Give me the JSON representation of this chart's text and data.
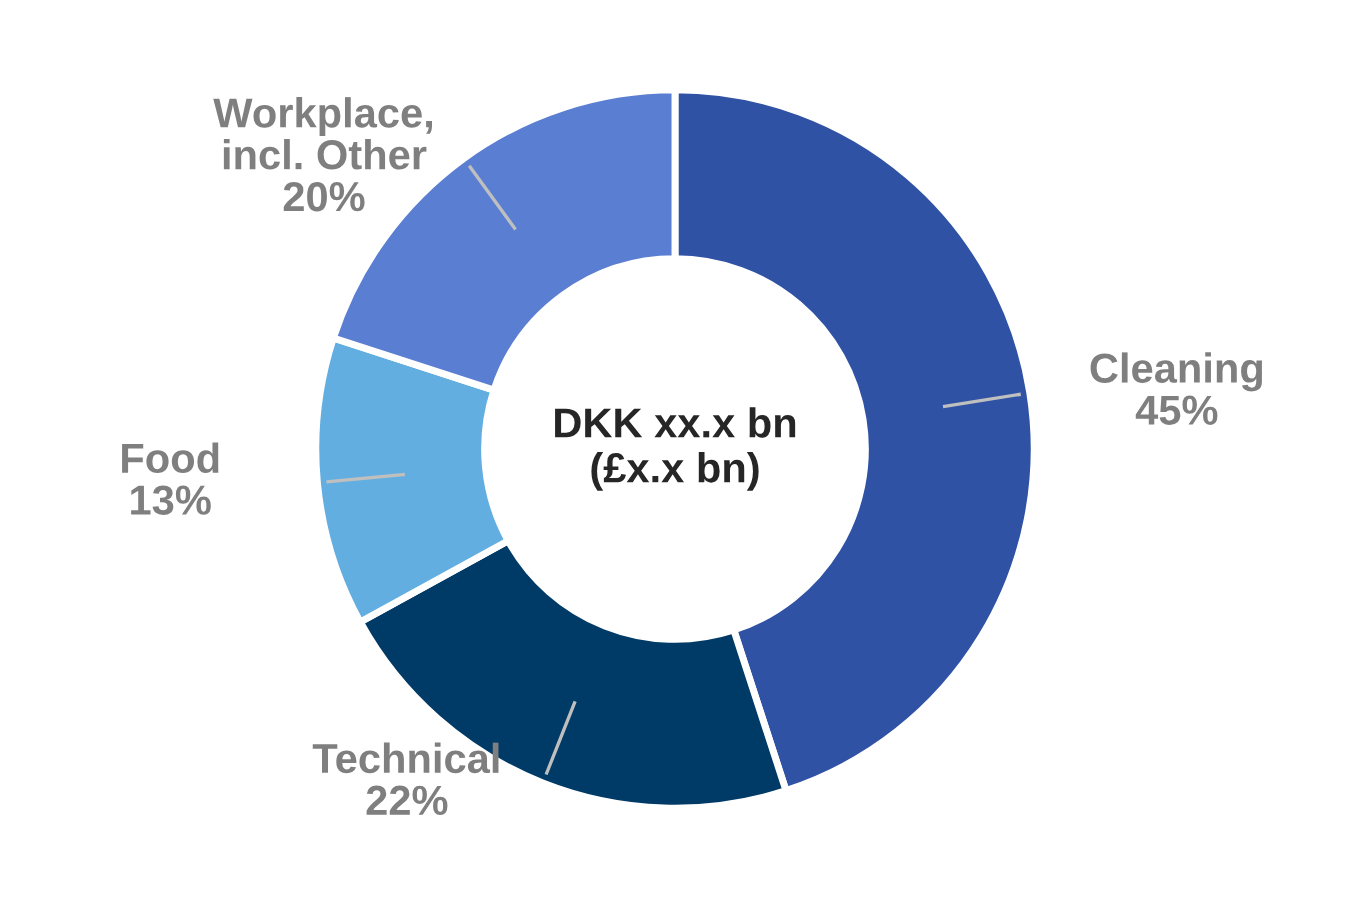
{
  "chart_data": {
    "type": "donut",
    "categories": [
      "Cleaning",
      "Technical",
      "Food",
      "Workplace,\nincl. Other"
    ],
    "values": [
      45,
      22,
      13,
      20
    ],
    "colors": [
      "#2f52a5",
      "#003a66",
      "#63aee1",
      "#5a7ed1"
    ],
    "value_labels": [
      "45%",
      "22%",
      "13%",
      "20%"
    ],
    "annotations": [
      "DKK xx.x bn\n(£x.x bn)"
    ]
  }
}
